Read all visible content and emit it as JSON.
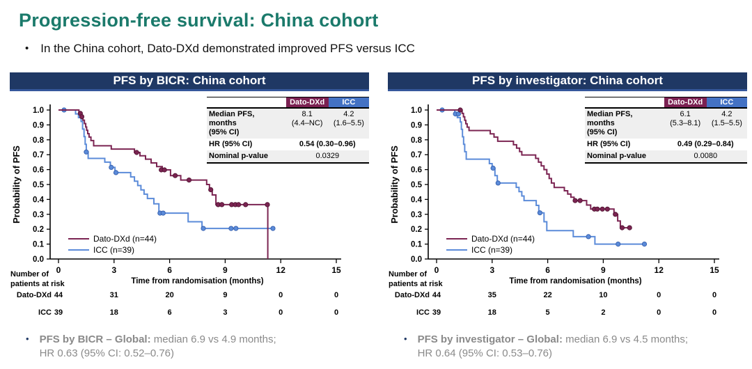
{
  "slide": {
    "title": "Progression-free survival: China cohort",
    "bullet": "In the China cohort, Dato-DXd demonstrated improved PFS versus ICC",
    "bullet_glyph": "•"
  },
  "colors": {
    "title_teal": "#1B7A6B",
    "header_navy": "#1F3864",
    "dato_maroon": "#7B2452",
    "icc_blue": "#5B8BD9",
    "table_icc_blue": "#4472C4",
    "footnote_gray": "#8A8A8A"
  },
  "panels": [
    {
      "header": "PFS by BICR: China cohort",
      "stats_table": {
        "col_dato": "Dato-DXd",
        "col_icc": "ICC",
        "median_label": "Median PFS, months\n(95% CI)",
        "median_dato": "8.1\n(4.4–NC)",
        "median_icc": "4.2\n(1.6–5.5)",
        "hr_label": "HR (95% CI)",
        "hr_value": "0.54 (0.30–0.96)",
        "p_label": "Nominal p-value",
        "p_value": "0.0329"
      },
      "risk_header": "Number of\npatients at risk",
      "risk_rows": [
        {
          "label": "Dato-DXd"
        },
        {
          "label": "ICC"
        }
      ],
      "footnote": {
        "bullet_glyph": "•",
        "bold": "PFS by BICR – Global:",
        "rest": " median 6.9 vs 4.9 months;",
        "line2": "HR 0.63 (95% CI: 0.52–0.76)"
      }
    },
    {
      "header": "PFS by investigator: China cohort",
      "stats_table": {
        "col_dato": "Dato-DXd",
        "col_icc": "ICC",
        "median_label": "Median PFS, months\n(95% CI)",
        "median_dato": "6.1\n(5.3–8.1)",
        "median_icc": "4.2\n(1.5–5.5)",
        "hr_label": "HR (95% CI)",
        "hr_value": "0.49 (0.29–0.84)",
        "p_label": "Nominal p-value",
        "p_value": "0.0080"
      },
      "risk_header": "Number of\npatients at risk",
      "risk_rows": [
        {
          "label": "Dato-DXd"
        },
        {
          "label": "ICC"
        }
      ],
      "footnote": {
        "bullet_glyph": "•",
        "bold": "PFS by investigator – Global:",
        "rest": " median 6.9 vs 4.5 months;",
        "line2": "HR 0.64 (95% CI: 0.53–0.76)"
      }
    }
  ],
  "chart_data": [
    {
      "type": "line",
      "subtype": "kaplan_meier_step",
      "title": "PFS by BICR: China cohort",
      "xlabel": "Time from randomisation (months)",
      "ylabel": "Probability of PFS",
      "xlim": [
        0,
        15.8
      ],
      "ylim": [
        0,
        1.0
      ],
      "x_ticks": [
        0,
        3,
        6,
        9,
        12,
        15
      ],
      "y_tick_step": 0.1,
      "grid": false,
      "legend_position": "lower-left",
      "series": [
        {
          "name": "Dato-DXd (n=44)",
          "color": "#7B2452",
          "marker_stroke": "#561736",
          "steps": [
            [
              0,
              1.0
            ],
            [
              1.1,
              0.977
            ],
            [
              1.2,
              0.955
            ],
            [
              1.32,
              0.932
            ],
            [
              1.4,
              0.909
            ],
            [
              1.47,
              0.886
            ],
            [
              1.52,
              0.864
            ],
            [
              1.58,
              0.841
            ],
            [
              1.65,
              0.818
            ],
            [
              1.75,
              0.795
            ],
            [
              1.9,
              0.76
            ],
            [
              2.85,
              0.738
            ],
            [
              4.1,
              0.715
            ],
            [
              4.4,
              0.693
            ],
            [
              4.7,
              0.67
            ],
            [
              5.0,
              0.645
            ],
            [
              5.3,
              0.62
            ],
            [
              5.6,
              0.598
            ],
            [
              6.05,
              0.56
            ],
            [
              6.6,
              0.53
            ],
            [
              8.0,
              0.5
            ],
            [
              8.15,
              0.465
            ],
            [
              8.3,
              0.43
            ],
            [
              8.5,
              0.365
            ],
            [
              11.3,
              0.0
            ]
          ],
          "censors": [
            [
              1.18,
              0.977
            ],
            [
              1.26,
              0.955
            ],
            [
              4.22,
              0.715
            ],
            [
              5.55,
              0.598
            ],
            [
              5.72,
              0.598
            ],
            [
              6.3,
              0.56
            ],
            [
              7.05,
              0.53
            ],
            [
              8.22,
              0.465
            ],
            [
              8.62,
              0.365
            ],
            [
              8.82,
              0.365
            ],
            [
              9.35,
              0.365
            ],
            [
              9.55,
              0.365
            ],
            [
              9.72,
              0.365
            ],
            [
              10.1,
              0.365
            ],
            [
              11.28,
              0.365
            ]
          ]
        },
        {
          "name": "ICC (n=39)",
          "color": "#5B8BD9",
          "marker_stroke": "#3A63B0",
          "steps": [
            [
              0,
              1.0
            ],
            [
              0.92,
              0.974
            ],
            [
              1.08,
              0.949
            ],
            [
              1.22,
              0.923
            ],
            [
              1.3,
              0.872
            ],
            [
              1.38,
              0.821
            ],
            [
              1.44,
              0.77
            ],
            [
              1.5,
              0.718
            ],
            [
              1.6,
              0.675
            ],
            [
              2.5,
              0.65
            ],
            [
              2.8,
              0.615
            ],
            [
              3.05,
              0.58
            ],
            [
              3.9,
              0.551
            ],
            [
              4.1,
              0.522
            ],
            [
              4.28,
              0.493
            ],
            [
              4.45,
              0.464
            ],
            [
              4.62,
              0.435
            ],
            [
              4.8,
              0.406
            ],
            [
              5.15,
              0.37
            ],
            [
              5.42,
              0.308
            ],
            [
              7.0,
              0.25
            ],
            [
              7.75,
              0.205
            ],
            [
              11.6,
              0.205
            ]
          ],
          "censors": [
            [
              0.3,
              1.0
            ],
            [
              1.5,
              0.718
            ],
            [
              2.85,
              0.615
            ],
            [
              3.1,
              0.58
            ],
            [
              5.48,
              0.308
            ],
            [
              5.65,
              0.308
            ],
            [
              7.82,
              0.205
            ],
            [
              9.32,
              0.205
            ],
            [
              9.58,
              0.205
            ],
            [
              11.58,
              0.205
            ]
          ]
        }
      ],
      "stats": {
        "median_dato": "8.1 (4.4–NC)",
        "median_icc": "4.2 (1.6–5.5)",
        "hr": "0.54 (0.30–0.96)",
        "nominal_p": "0.0329"
      },
      "number_at_risk": {
        "times": [
          0,
          3,
          6,
          9,
          12,
          15
        ],
        "rows": [
          {
            "label": "Dato-DXd",
            "counts": [
              44,
              31,
              20,
              9,
              0,
              0
            ]
          },
          {
            "label": "ICC",
            "counts": [
              39,
              18,
              6,
              3,
              0,
              0
            ]
          }
        ]
      }
    },
    {
      "type": "line",
      "subtype": "kaplan_meier_step",
      "title": "PFS by investigator: China cohort",
      "xlabel": "Time from randomisation (months)",
      "ylabel": "Probability of PFS",
      "xlim": [
        0,
        15.8
      ],
      "ylim": [
        0,
        1.0
      ],
      "x_ticks": [
        0,
        3,
        6,
        9,
        12,
        15
      ],
      "y_tick_step": 0.1,
      "grid": false,
      "legend_position": "lower-left",
      "series": [
        {
          "name": "Dato-DXd (n=44)",
          "color": "#7B2452",
          "marker_stroke": "#561736",
          "steps": [
            [
              0,
              1.0
            ],
            [
              1.38,
              0.977
            ],
            [
              1.45,
              0.954
            ],
            [
              1.52,
              0.931
            ],
            [
              1.58,
              0.908
            ],
            [
              1.65,
              0.885
            ],
            [
              1.75,
              0.862
            ],
            [
              2.9,
              0.84
            ],
            [
              3.1,
              0.818
            ],
            [
              3.3,
              0.79
            ],
            [
              4.15,
              0.767
            ],
            [
              4.32,
              0.744
            ],
            [
              4.48,
              0.721
            ],
            [
              4.6,
              0.698
            ],
            [
              5.35,
              0.675
            ],
            [
              5.5,
              0.65
            ],
            [
              5.65,
              0.625
            ],
            [
              5.8,
              0.6
            ],
            [
              5.95,
              0.57
            ],
            [
              6.08,
              0.54
            ],
            [
              6.2,
              0.51
            ],
            [
              6.35,
              0.48
            ],
            [
              6.9,
              0.458
            ],
            [
              7.08,
              0.436
            ],
            [
              7.25,
              0.415
            ],
            [
              7.42,
              0.392
            ],
            [
              8.1,
              0.362
            ],
            [
              8.32,
              0.335
            ],
            [
              9.58,
              0.3
            ],
            [
              9.78,
              0.255
            ],
            [
              9.92,
              0.21
            ],
            [
              10.45,
              0.21
            ]
          ],
          "censors": [
            [
              1.28,
              1.0
            ],
            [
              7.48,
              0.392
            ],
            [
              7.75,
              0.392
            ],
            [
              8.52,
              0.335
            ],
            [
              8.68,
              0.335
            ],
            [
              8.95,
              0.335
            ],
            [
              9.22,
              0.335
            ],
            [
              9.65,
              0.3
            ],
            [
              10.02,
              0.21
            ],
            [
              10.42,
              0.21
            ]
          ]
        },
        {
          "name": "ICC (n=39)",
          "color": "#5B8BD9",
          "marker_stroke": "#3A63B0",
          "steps": [
            [
              0,
              1.0
            ],
            [
              0.98,
              0.974
            ],
            [
              1.12,
              0.949
            ],
            [
              1.28,
              0.92
            ],
            [
              1.34,
              0.87
            ],
            [
              1.4,
              0.82
            ],
            [
              1.46,
              0.77
            ],
            [
              1.52,
              0.72
            ],
            [
              1.6,
              0.67
            ],
            [
              2.85,
              0.64
            ],
            [
              3.0,
              0.61
            ],
            [
              3.15,
              0.56
            ],
            [
              3.28,
              0.51
            ],
            [
              4.3,
              0.481
            ],
            [
              4.45,
              0.452
            ],
            [
              4.6,
              0.423
            ],
            [
              4.72,
              0.392
            ],
            [
              5.38,
              0.36
            ],
            [
              5.52,
              0.31
            ],
            [
              5.8,
              0.25
            ],
            [
              5.95,
              0.19
            ],
            [
              7.38,
              0.15
            ],
            [
              8.55,
              0.1
            ],
            [
              11.25,
              0.1
            ]
          ],
          "censors": [
            [
              0.3,
              1.0
            ],
            [
              1.02,
              0.974
            ],
            [
              1.18,
              0.974
            ],
            [
              3.05,
              0.61
            ],
            [
              3.32,
              0.51
            ],
            [
              5.58,
              0.31
            ],
            [
              8.2,
              0.15
            ],
            [
              9.8,
              0.1
            ],
            [
              11.22,
              0.1
            ]
          ]
        }
      ],
      "stats": {
        "median_dato": "6.1 (5.3–8.1)",
        "median_icc": "4.2 (1.5–5.5)",
        "hr": "0.49 (0.29–0.84)",
        "nominal_p": "0.0080"
      },
      "number_at_risk": {
        "times": [
          0,
          3,
          6,
          9,
          12,
          15
        ],
        "rows": [
          {
            "label": "Dato-DXd",
            "counts": [
              44,
              35,
              22,
              10,
              0,
              0
            ]
          },
          {
            "label": "ICC",
            "counts": [
              39,
              18,
              5,
              2,
              0,
              0
            ]
          }
        ]
      }
    }
  ]
}
